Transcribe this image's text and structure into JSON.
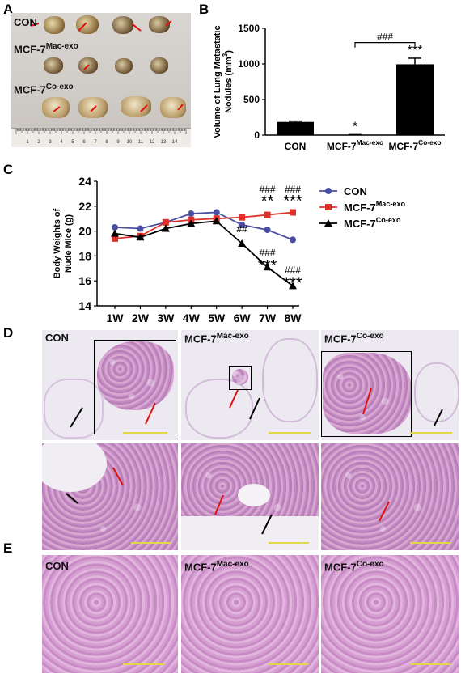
{
  "panels": {
    "a": "A",
    "b": "B",
    "c": "C",
    "d": "D",
    "e": "E"
  },
  "photo": {
    "row_con": "CON",
    "row_mac_base": "MCF-7",
    "row_mac_sup": "Mac-exo",
    "row_co_base": "MCF-7",
    "row_co_sup": "Co-exo",
    "ruler_numbers": [
      "1",
      "2",
      "3",
      "4",
      "5",
      "6",
      "7",
      "8",
      "9",
      "10",
      "11",
      "12",
      "13",
      "14"
    ]
  },
  "chart_data": [
    {
      "type": "bar",
      "ylabel_line1": "Volume of Lung Metastatic",
      "ylabel_line2": "Nodules (mm",
      "ylabel_sup": "3",
      "ylabel_close": ")",
      "categories": [
        {
          "base": "CON",
          "sup": ""
        },
        {
          "base": "MCF-7",
          "sup": "Mac-exo"
        },
        {
          "base": "MCF-7",
          "sup": "Co-exo"
        }
      ],
      "values": [
        185,
        5,
        995
      ],
      "errors": [
        12,
        2,
        85
      ],
      "annotations": [
        "",
        "*",
        "***"
      ],
      "bracket_label": "###",
      "ylim": [
        0,
        1500
      ],
      "yticks": [
        "0",
        "500",
        "1000",
        "1500"
      ],
      "bar_color": "#000000"
    },
    {
      "type": "line",
      "ylabel_line1": "Body Weights of",
      "ylabel_line2": "Nude Mice (g)",
      "x": [
        "1W",
        "2W",
        "3W",
        "4W",
        "5W",
        "6W",
        "7W",
        "8W"
      ],
      "ylim": [
        14,
        24
      ],
      "yticks": [
        "14",
        "16",
        "18",
        "20",
        "22",
        "24"
      ],
      "series": [
        {
          "name_base": "CON",
          "name_sup": "",
          "color": "#4b4fa3",
          "marker": "circle",
          "values": [
            20.3,
            20.2,
            20.7,
            21.4,
            21.5,
            20.5,
            20.1,
            19.3
          ]
        },
        {
          "name_base": "MCF-7",
          "name_sup": "Mac-exo",
          "color": "#e0302a",
          "marker": "square",
          "values": [
            19.4,
            19.6,
            20.7,
            20.9,
            21.0,
            21.1,
            21.3,
            21.5
          ]
        },
        {
          "name_base": "MCF-7",
          "name_sup": "Co-exo",
          "color": "#000000",
          "marker": "triangle",
          "values": [
            19.8,
            19.5,
            20.2,
            20.6,
            20.8,
            19.0,
            17.1,
            15.6
          ]
        }
      ],
      "annotations": [
        {
          "x": "6W",
          "text": "##",
          "y": 19.9
        },
        {
          "x": "7W",
          "text": "###",
          "y": 23.1
        },
        {
          "x": "7W",
          "text": "**",
          "y": 22.0
        },
        {
          "x": "8W",
          "text": "###",
          "y": 23.1
        },
        {
          "x": "8W",
          "text": "***",
          "y": 22.0
        },
        {
          "x": "7W",
          "text": "###",
          "y": 18.0
        },
        {
          "x": "7W",
          "text": "***",
          "y": 16.8
        },
        {
          "x": "8W",
          "text": "###",
          "y": 16.6
        },
        {
          "x": "8W",
          "text": "***",
          "y": 15.4
        }
      ]
    }
  ],
  "histology": {
    "lung_labels": [
      {
        "base": "CON",
        "sup": ""
      },
      {
        "base": "MCF-7",
        "sup": "Mac-exo"
      },
      {
        "base": "MCF-7",
        "sup": "Co-exo"
      }
    ],
    "liver_labels": [
      {
        "base": "CON",
        "sup": ""
      },
      {
        "base": "MCF-7",
        "sup": "Mac-exo"
      },
      {
        "base": "MCF-7",
        "sup": "Co-exo"
      }
    ]
  }
}
